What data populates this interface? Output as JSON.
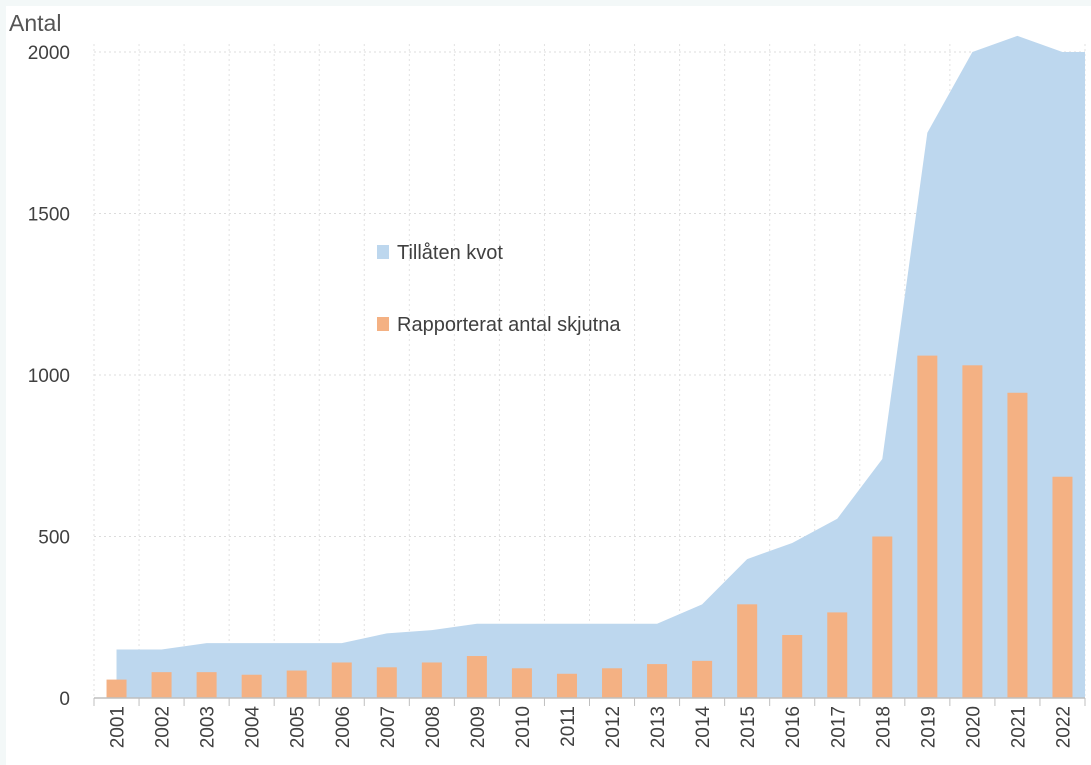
{
  "chart_data": {
    "type": "bar",
    "title": "",
    "xlabel": "",
    "ylabel": "Antal",
    "ylim": [
      0,
      2000
    ],
    "yticks": [
      0,
      500,
      1000,
      1500,
      2000
    ],
    "grid": true,
    "legend_position": "upper-center",
    "categories": [
      "2001",
      "2002",
      "2003",
      "2004",
      "2005",
      "2006",
      "2007",
      "2008",
      "2009",
      "2010",
      "2011",
      "2012",
      "2013",
      "2014",
      "2015",
      "2016",
      "2017",
      "2018",
      "2019",
      "2020",
      "2021",
      "2022"
    ],
    "series": [
      {
        "name": "Tillåten kvot",
        "kind": "area",
        "color": "#bdd7ee",
        "values": [
          150,
          150,
          170,
          170,
          170,
          170,
          200,
          210,
          230,
          230,
          230,
          230,
          230,
          290,
          430,
          480,
          555,
          740,
          1750,
          2000,
          2050,
          2000
        ]
      },
      {
        "name": "Rapporterat antal skjutna",
        "kind": "bar",
        "color": "#f4b183",
        "values": [
          57,
          80,
          80,
          72,
          85,
          110,
          95,
          110,
          130,
          92,
          75,
          92,
          105,
          115,
          290,
          195,
          265,
          500,
          1060,
          1030,
          945,
          685
        ]
      }
    ]
  }
}
